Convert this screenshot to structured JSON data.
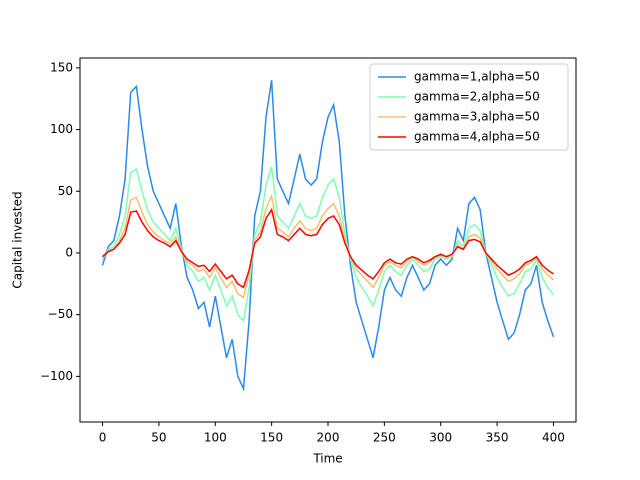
{
  "chart_data": {
    "type": "line",
    "xlabel": "Time",
    "ylabel": "Capital invested",
    "x": [
      0,
      5,
      10,
      15,
      20,
      25,
      30,
      35,
      40,
      45,
      50,
      55,
      60,
      65,
      70,
      75,
      80,
      85,
      90,
      95,
      100,
      105,
      110,
      115,
      120,
      125,
      130,
      135,
      140,
      145,
      150,
      155,
      160,
      165,
      170,
      175,
      180,
      185,
      190,
      195,
      200,
      205,
      210,
      215,
      220,
      225,
      230,
      235,
      240,
      245,
      250,
      255,
      260,
      265,
      270,
      275,
      280,
      285,
      290,
      295,
      300,
      305,
      310,
      315,
      320,
      325,
      330,
      335,
      340,
      345,
      350,
      355,
      360,
      365,
      370,
      375,
      380,
      385,
      390,
      395,
      400
    ],
    "series": [
      {
        "name": "gamma=1,alpha=50",
        "color": "#2a8ae8",
        "values": [
          -10,
          5,
          10,
          30,
          60,
          130,
          135,
          100,
          70,
          50,
          40,
          30,
          20,
          40,
          5,
          -20,
          -30,
          -45,
          -40,
          -60,
          -35,
          -60,
          -85,
          -70,
          -100,
          -110,
          -55,
          30,
          50,
          110,
          140,
          60,
          50,
          40,
          60,
          80,
          60,
          55,
          60,
          90,
          110,
          120,
          90,
          30,
          -10,
          -40,
          -55,
          -70,
          -85,
          -60,
          -30,
          -20,
          -30,
          -35,
          -20,
          -10,
          -20,
          -30,
          -25,
          -10,
          -5,
          -10,
          -5,
          20,
          10,
          40,
          45,
          35,
          0,
          -20,
          -40,
          -55,
          -70,
          -65,
          -50,
          -30,
          -25,
          -10,
          -40,
          -55,
          -68
        ]
      },
      {
        "name": "gamma=2,alpha=50",
        "color": "#80ffb4",
        "values": [
          -5,
          3,
          5,
          15,
          30,
          65,
          68,
          50,
          35,
          25,
          20,
          15,
          10,
          20,
          3,
          -10,
          -15,
          -23,
          -20,
          -30,
          -18,
          -30,
          -43,
          -35,
          -50,
          -55,
          -28,
          15,
          25,
          55,
          70,
          30,
          25,
          20,
          30,
          40,
          30,
          28,
          30,
          45,
          55,
          60,
          45,
          15,
          -5,
          -20,
          -28,
          -35,
          -43,
          -30,
          -15,
          -10,
          -15,
          -18,
          -10,
          -5,
          -10,
          -15,
          -13,
          -5,
          -3,
          -5,
          -3,
          10,
          5,
          20,
          23,
          18,
          0,
          -10,
          -20,
          -28,
          -35,
          -33,
          -25,
          -15,
          -13,
          -5,
          -20,
          -28,
          -34
        ]
      },
      {
        "name": "gamma=3,alpha=50",
        "color": "#f4c070",
        "values": [
          -3,
          2,
          3,
          10,
          20,
          43,
          45,
          33,
          23,
          17,
          13,
          10,
          7,
          13,
          2,
          -7,
          -10,
          -15,
          -13,
          -20,
          -12,
          -20,
          -28,
          -23,
          -33,
          -36,
          -18,
          10,
          17,
          36,
          46,
          20,
          17,
          13,
          20,
          26,
          20,
          18,
          20,
          30,
          36,
          40,
          30,
          10,
          -3,
          -13,
          -18,
          -23,
          -28,
          -20,
          -10,
          -7,
          -10,
          -12,
          -7,
          -3,
          -7,
          -10,
          -8,
          -3,
          -2,
          -3,
          -2,
          7,
          3,
          13,
          15,
          12,
          0,
          -7,
          -13,
          -18,
          -23,
          -21,
          -17,
          -10,
          -8,
          -3,
          -13,
          -18,
          -22
        ]
      },
      {
        "name": "gamma=4,alpha=50",
        "color": "#ff0000",
        "values": [
          -3,
          1,
          3,
          8,
          15,
          33,
          34,
          25,
          18,
          13,
          10,
          8,
          5,
          10,
          1,
          -5,
          -8,
          -11,
          -10,
          -15,
          -9,
          -15,
          -21,
          -18,
          -25,
          -28,
          -14,
          8,
          13,
          28,
          35,
          15,
          13,
          10,
          15,
          20,
          15,
          14,
          15,
          23,
          28,
          30,
          23,
          8,
          -3,
          -10,
          -14,
          -18,
          -21,
          -15,
          -8,
          -5,
          -8,
          -9,
          -5,
          -3,
          -5,
          -8,
          -6,
          -3,
          -1,
          -3,
          -1,
          5,
          3,
          10,
          11,
          9,
          0,
          -5,
          -10,
          -14,
          -18,
          -16,
          -13,
          -8,
          -6,
          -3,
          -10,
          -14,
          -17
        ]
      }
    ],
    "xlim": [
      -20,
      420
    ],
    "ylim": [
      -137,
      158
    ],
    "xticks": [
      0,
      50,
      100,
      150,
      200,
      250,
      300,
      350,
      400
    ],
    "yticks": [
      {
        "value": -100,
        "label": "−100"
      },
      {
        "value": -50,
        "label": "−50"
      },
      0,
      50,
      100,
      150
    ],
    "legend": "upper right"
  }
}
